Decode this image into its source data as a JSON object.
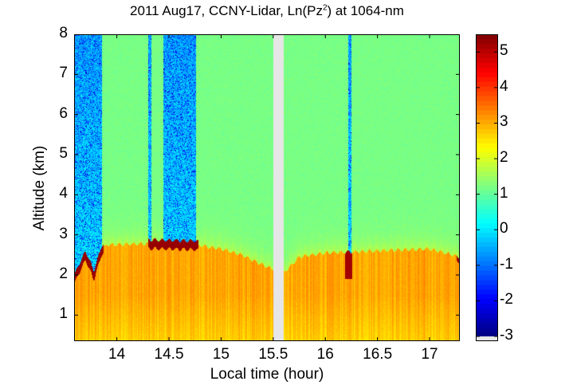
{
  "chart_data": {
    "type": "heatmap",
    "title_main": "2011 Aug17, CCNY-Lidar, Ln(Pz",
    "title_sup": "2",
    "title_end": ") at 1064-nm",
    "xlabel": "Local time (hour)",
    "ylabel": "Altitude (km)",
    "xlim": [
      13.59,
      17.29
    ],
    "ylim": [
      0.35,
      8
    ],
    "xticks": [
      14,
      14.5,
      15,
      15.5,
      16,
      16.5,
      17
    ],
    "xtick_labels": [
      "14",
      "14.5",
      "15",
      "15.5",
      "16",
      "16.5",
      "17"
    ],
    "yticks": [
      1,
      2,
      3,
      4,
      5,
      6,
      7,
      8
    ],
    "ytick_labels": [
      "1",
      "2",
      "3",
      "4",
      "5",
      "6",
      "7",
      "8"
    ],
    "colormap": "jet",
    "clim": [
      -3,
      5.5
    ],
    "colorbar_ticks": [
      -3,
      -2,
      -1,
      0,
      1,
      2,
      3,
      4,
      5
    ],
    "colorbar_tick_labels": [
      "-3",
      "-2",
      "-1",
      "0",
      "1",
      "2",
      "3",
      "4",
      "5"
    ],
    "no_data_color": "#e6e6e6",
    "no_data_interval_hour": [
      15.5,
      15.6
    ],
    "boundary_layer_top_km": {
      "time": [
        13.59,
        13.7,
        13.78,
        13.85,
        13.9,
        14.3,
        14.75,
        15.0,
        15.2,
        15.4,
        15.5,
        15.6,
        15.75,
        16.0,
        16.5,
        17.0,
        17.29
      ],
      "height": [
        1.9,
        2.5,
        2.0,
        2.6,
        2.75,
        2.78,
        2.75,
        2.65,
        2.5,
        2.25,
        2.15,
        2.05,
        2.45,
        2.55,
        2.6,
        2.65,
        2.45
      ]
    },
    "low_signal_intervals_hour": [
      [
        13.59,
        13.86
      ],
      [
        14.3,
        14.33
      ],
      [
        14.45,
        14.76
      ],
      [
        16.22,
        16.25
      ]
    ],
    "grid": false
  }
}
